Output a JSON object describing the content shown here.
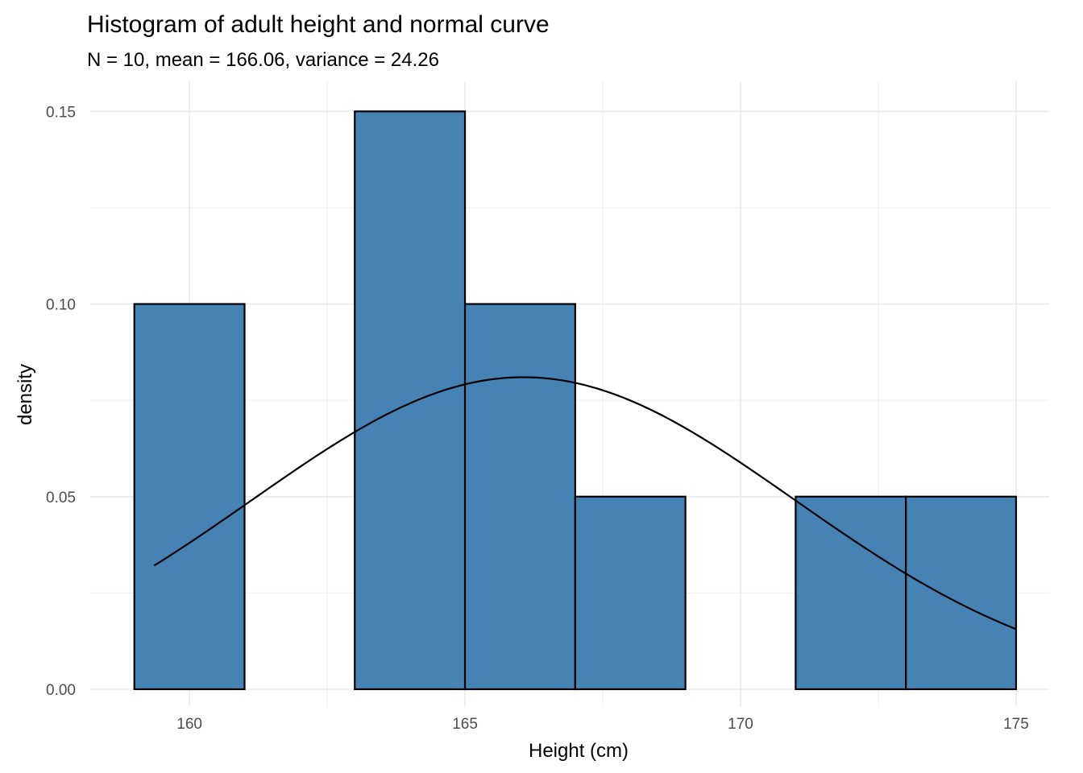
{
  "chart_data": {
    "type": "bar",
    "subtype": "histogram-with-density-curve",
    "title": "Histogram of adult height and normal curve",
    "subtitle": "N = 10, mean = 166.06, variance = 24.26",
    "xlabel": "Height (cm)",
    "ylabel": "density",
    "xlim": [
      158.2,
      175.6
    ],
    "ylim": [
      -0.0046,
      0.1578
    ],
    "x_ticks": [
      160,
      165,
      170,
      175
    ],
    "x_tick_labels": [
      "160",
      "165",
      "170",
      "175"
    ],
    "y_ticks": [
      0.0,
      0.05,
      0.1,
      0.15
    ],
    "y_tick_labels": [
      "0.00",
      "0.05",
      "0.10",
      "0.15"
    ],
    "x_minor_ticks": [
      162.5,
      167.5,
      172.5
    ],
    "y_minor_ticks": [
      0.025,
      0.075,
      0.125
    ],
    "grid": true,
    "legend": "none",
    "bins": [
      {
        "x0": 159,
        "x1": 161,
        "density": 0.1
      },
      {
        "x0": 161,
        "x1": 163,
        "density": 0.0
      },
      {
        "x0": 163,
        "x1": 165,
        "density": 0.15
      },
      {
        "x0": 165,
        "x1": 167,
        "density": 0.1
      },
      {
        "x0": 167,
        "x1": 169,
        "density": 0.05
      },
      {
        "x0": 169,
        "x1": 171,
        "density": 0.0
      },
      {
        "x0": 171,
        "x1": 173,
        "density": 0.05
      },
      {
        "x0": 173,
        "x1": 175,
        "density": 0.05
      }
    ],
    "normal_curve": {
      "mean": 166.06,
      "variance": 24.26,
      "x_range": [
        159.36,
        175.0
      ]
    },
    "colors": {
      "bar_fill": "#4682b4",
      "bar_outline": "#000000",
      "curve": "#000000"
    }
  }
}
